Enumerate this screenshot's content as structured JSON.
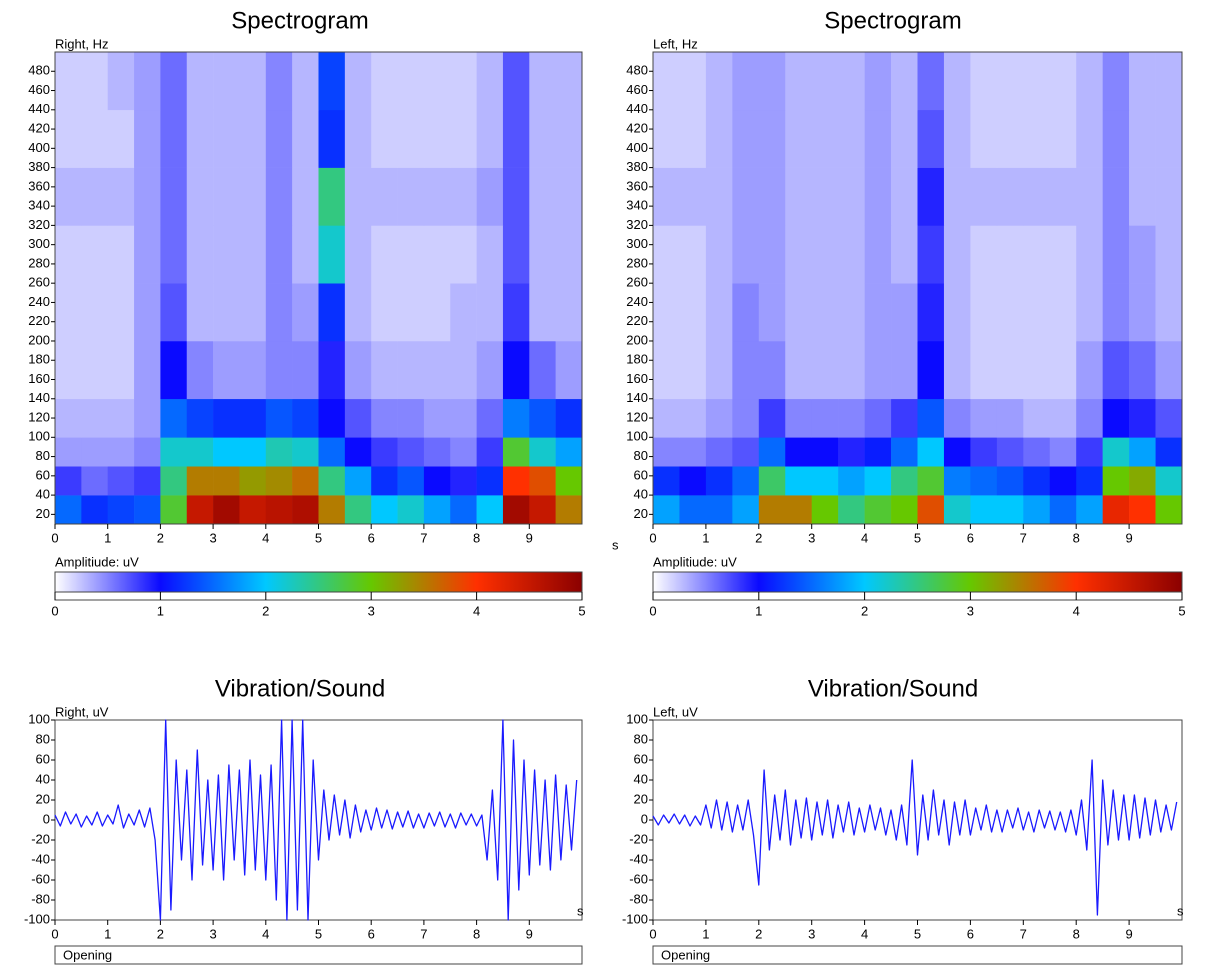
{
  "chart_data": [
    {
      "type": "heatmap",
      "title": "Spectrogram",
      "y_label": "Right, Hz",
      "x_unit": "s",
      "xlim": [
        0,
        10
      ],
      "xticks": [
        0,
        1,
        2,
        3,
        4,
        5,
        6,
        7,
        8,
        9
      ],
      "ylim": [
        10,
        500
      ],
      "yticks": [
        20,
        40,
        60,
        80,
        100,
        120,
        140,
        160,
        180,
        200,
        220,
        240,
        260,
        280,
        300,
        320,
        340,
        360,
        380,
        400,
        420,
        440,
        460,
        480
      ],
      "xbins": [
        0,
        0.5,
        1,
        1.5,
        2,
        2.5,
        3,
        3.5,
        4,
        4.5,
        5,
        5.5,
        6,
        6.5,
        7,
        7.5,
        8,
        8.5,
        9,
        9.5,
        10
      ],
      "ybins": [
        10,
        40,
        70,
        100,
        140,
        200,
        260,
        320,
        380,
        440,
        500
      ],
      "z": [
        [
          1.5,
          1.2,
          1.3,
          1.4,
          2.8,
          4.5,
          4.8,
          4.5,
          4.6,
          4.7,
          3.5,
          2.5,
          2.0,
          2.2,
          1.8,
          1.5,
          2.0,
          4.8,
          4.5,
          3.5
        ],
        [
          0.8,
          0.6,
          0.7,
          0.8,
          2.5,
          3.5,
          3.5,
          3.3,
          3.4,
          3.6,
          2.5,
          1.8,
          1.2,
          1.4,
          1.0,
          0.9,
          1.2,
          4.0,
          3.8,
          3.0
        ],
        [
          0.4,
          0.4,
          0.4,
          0.5,
          2.2,
          2.2,
          2.0,
          2.0,
          2.3,
          2.2,
          1.5,
          1.0,
          0.8,
          0.7,
          0.6,
          0.5,
          0.8,
          2.8,
          2.2,
          1.8
        ],
        [
          0.3,
          0.3,
          0.3,
          0.4,
          1.5,
          1.3,
          1.2,
          1.2,
          1.4,
          1.3,
          1.0,
          0.7,
          0.5,
          0.5,
          0.4,
          0.4,
          0.6,
          1.6,
          1.4,
          1.2
        ],
        [
          0.2,
          0.2,
          0.2,
          0.4,
          1.0,
          0.5,
          0.4,
          0.4,
          0.5,
          0.5,
          0.9,
          0.4,
          0.3,
          0.3,
          0.3,
          0.3,
          0.4,
          1.0,
          0.6,
          0.4
        ],
        [
          0.2,
          0.2,
          0.2,
          0.4,
          0.7,
          0.3,
          0.3,
          0.3,
          0.5,
          0.4,
          1.2,
          0.3,
          0.2,
          0.2,
          0.2,
          0.3,
          0.3,
          0.8,
          0.3,
          0.3
        ],
        [
          0.2,
          0.2,
          0.2,
          0.4,
          0.6,
          0.3,
          0.3,
          0.3,
          0.5,
          0.3,
          2.2,
          0.3,
          0.2,
          0.2,
          0.2,
          0.2,
          0.3,
          0.7,
          0.3,
          0.3
        ],
        [
          0.3,
          0.3,
          0.3,
          0.4,
          0.6,
          0.3,
          0.3,
          0.3,
          0.5,
          0.3,
          2.5,
          0.3,
          0.3,
          0.3,
          0.3,
          0.3,
          0.4,
          0.7,
          0.3,
          0.3
        ],
        [
          0.2,
          0.2,
          0.2,
          0.4,
          0.6,
          0.3,
          0.3,
          0.3,
          0.5,
          0.3,
          1.2,
          0.3,
          0.2,
          0.2,
          0.2,
          0.2,
          0.3,
          0.7,
          0.3,
          0.3
        ],
        [
          0.2,
          0.2,
          0.3,
          0.4,
          0.6,
          0.3,
          0.3,
          0.3,
          0.5,
          0.3,
          1.3,
          0.3,
          0.2,
          0.2,
          0.2,
          0.2,
          0.3,
          0.7,
          0.3,
          0.3
        ]
      ],
      "colorbar": {
        "label": "Amplitiude: uV",
        "ticks": [
          0,
          1,
          2,
          3,
          4,
          5
        ],
        "colors": [
          "#ffffff",
          "#0a0aff",
          "#00c8ff",
          "#66c800",
          "#ff3000",
          "#8b0000"
        ]
      }
    },
    {
      "type": "heatmap",
      "title": "Spectrogram",
      "y_label": "Left, Hz",
      "x_unit": "s",
      "xlim": [
        0,
        10
      ],
      "xticks": [
        0,
        1,
        2,
        3,
        4,
        5,
        6,
        7,
        8,
        9
      ],
      "ylim": [
        10,
        500
      ],
      "yticks": [
        20,
        40,
        60,
        80,
        100,
        120,
        140,
        160,
        180,
        200,
        220,
        240,
        260,
        280,
        300,
        320,
        340,
        360,
        380,
        400,
        420,
        440,
        460,
        480
      ],
      "xbins": [
        0,
        0.5,
        1,
        1.5,
        2,
        2.5,
        3,
        3.5,
        4,
        4.5,
        5,
        5.5,
        6,
        6.5,
        7,
        7.5,
        8,
        8.5,
        9,
        9.5,
        10
      ],
      "ybins": [
        10,
        40,
        70,
        100,
        140,
        200,
        260,
        320,
        380,
        440,
        500
      ],
      "z": [
        [
          1.8,
          1.5,
          1.5,
          1.8,
          3.5,
          3.5,
          3.0,
          2.5,
          2.8,
          3.0,
          3.8,
          2.2,
          2.0,
          2.0,
          1.8,
          1.5,
          1.8,
          4.2,
          4.0,
          3.0
        ],
        [
          1.2,
          1.0,
          1.2,
          1.5,
          2.6,
          2.0,
          2.0,
          1.8,
          2.0,
          2.5,
          2.8,
          1.6,
          1.5,
          1.4,
          1.2,
          1.0,
          1.2,
          3.0,
          3.2,
          2.2
        ],
        [
          0.5,
          0.5,
          0.6,
          0.7,
          1.5,
          1.0,
          1.0,
          0.9,
          1.1,
          1.5,
          2.0,
          1.0,
          0.8,
          0.7,
          0.6,
          0.5,
          0.8,
          2.2,
          1.8,
          1.2
        ],
        [
          0.3,
          0.3,
          0.4,
          0.5,
          0.8,
          0.5,
          0.5,
          0.5,
          0.6,
          0.8,
          1.4,
          0.5,
          0.4,
          0.4,
          0.3,
          0.3,
          0.5,
          1.0,
          0.9,
          0.7
        ],
        [
          0.2,
          0.2,
          0.3,
          0.5,
          0.5,
          0.3,
          0.3,
          0.3,
          0.4,
          0.4,
          1.0,
          0.3,
          0.2,
          0.2,
          0.2,
          0.2,
          0.4,
          0.7,
          0.6,
          0.4
        ],
        [
          0.2,
          0.2,
          0.3,
          0.5,
          0.4,
          0.3,
          0.3,
          0.3,
          0.4,
          0.4,
          0.9,
          0.3,
          0.2,
          0.2,
          0.2,
          0.2,
          0.3,
          0.5,
          0.4,
          0.3
        ],
        [
          0.2,
          0.2,
          0.3,
          0.4,
          0.4,
          0.3,
          0.3,
          0.3,
          0.4,
          0.3,
          0.8,
          0.3,
          0.2,
          0.2,
          0.2,
          0.2,
          0.3,
          0.5,
          0.4,
          0.3
        ],
        [
          0.3,
          0.3,
          0.3,
          0.4,
          0.4,
          0.3,
          0.3,
          0.3,
          0.4,
          0.3,
          0.9,
          0.3,
          0.3,
          0.3,
          0.3,
          0.3,
          0.3,
          0.5,
          0.3,
          0.3
        ],
        [
          0.2,
          0.2,
          0.3,
          0.4,
          0.4,
          0.3,
          0.3,
          0.3,
          0.4,
          0.3,
          0.7,
          0.3,
          0.2,
          0.2,
          0.2,
          0.2,
          0.3,
          0.5,
          0.3,
          0.3
        ],
        [
          0.2,
          0.2,
          0.3,
          0.4,
          0.4,
          0.3,
          0.3,
          0.3,
          0.4,
          0.3,
          0.6,
          0.3,
          0.2,
          0.2,
          0.2,
          0.2,
          0.3,
          0.5,
          0.3,
          0.3
        ]
      ],
      "colorbar": {
        "label": "Amplitiude: uV",
        "ticks": [
          0,
          1,
          2,
          3,
          4,
          5
        ],
        "colors": [
          "#ffffff",
          "#0a0aff",
          "#00c8ff",
          "#66c800",
          "#ff3000",
          "#8b0000"
        ]
      }
    },
    {
      "type": "line",
      "title": "Vibration/Sound",
      "y_label": "Right, uV",
      "x_unit": "s",
      "footer": "Opening",
      "color": "#1a1aff",
      "xlim": [
        0,
        10
      ],
      "xticks": [
        0,
        1,
        2,
        3,
        4,
        5,
        6,
        7,
        8,
        9
      ],
      "ylim": [
        -100,
        100
      ],
      "yticks": [
        100,
        80,
        60,
        40,
        20,
        0,
        -20,
        -40,
        -60,
        -80,
        -100
      ],
      "x": [
        0,
        0.1,
        0.2,
        0.3,
        0.4,
        0.5,
        0.6,
        0.7,
        0.8,
        0.9,
        1,
        1.1,
        1.2,
        1.3,
        1.4,
        1.5,
        1.6,
        1.7,
        1.8,
        1.9,
        2,
        2.1,
        2.2,
        2.3,
        2.4,
        2.5,
        2.6,
        2.7,
        2.8,
        2.9,
        3,
        3.1,
        3.2,
        3.3,
        3.4,
        3.5,
        3.6,
        3.7,
        3.8,
        3.9,
        4,
        4.1,
        4.2,
        4.3,
        4.4,
        4.5,
        4.6,
        4.7,
        4.8,
        4.9,
        5,
        5.1,
        5.2,
        5.3,
        5.4,
        5.5,
        5.6,
        5.7,
        5.8,
        5.9,
        6,
        6.1,
        6.2,
        6.3,
        6.4,
        6.5,
        6.6,
        6.7,
        6.8,
        6.9,
        7,
        7.1,
        7.2,
        7.3,
        7.4,
        7.5,
        7.6,
        7.7,
        7.8,
        7.9,
        8,
        8.1,
        8.2,
        8.3,
        8.4,
        8.5,
        8.6,
        8.7,
        8.8,
        8.9,
        9,
        9.1,
        9.2,
        9.3,
        9.4,
        9.5,
        9.6,
        9.7,
        9.8,
        9.9
      ],
      "values": [
        5,
        -6,
        8,
        -4,
        6,
        -7,
        4,
        -5,
        8,
        -6,
        5,
        -4,
        15,
        -8,
        6,
        -5,
        10,
        -7,
        12,
        -20,
        -100,
        100,
        -90,
        60,
        -40,
        50,
        -60,
        70,
        -45,
        40,
        -50,
        45,
        -60,
        55,
        -40,
        50,
        -55,
        60,
        -50,
        45,
        -60,
        55,
        -80,
        100,
        -100,
        100,
        -90,
        100,
        -100,
        60,
        -40,
        30,
        -20,
        25,
        -15,
        20,
        -18,
        15,
        -12,
        10,
        -10,
        12,
        -8,
        10,
        -9,
        8,
        -7,
        9,
        -8,
        6,
        -8,
        7,
        -6,
        8,
        -7,
        6,
        -8,
        7,
        -5,
        6,
        -6,
        5,
        -40,
        30,
        -60,
        100,
        -100,
        80,
        -70,
        60,
        -55,
        50,
        -45,
        40,
        -50,
        45,
        -40,
        35,
        -30,
        40
      ]
    },
    {
      "type": "line",
      "title": "Vibration/Sound",
      "y_label": "Left, uV",
      "x_unit": "s",
      "footer": "Opening",
      "color": "#1a1aff",
      "xlim": [
        0,
        10
      ],
      "xticks": [
        0,
        1,
        2,
        3,
        4,
        5,
        6,
        7,
        8,
        9
      ],
      "ylim": [
        -100,
        100
      ],
      "yticks": [
        100,
        80,
        60,
        40,
        20,
        0,
        -20,
        -40,
        -60,
        -80,
        -100
      ],
      "x": [
        0,
        0.1,
        0.2,
        0.3,
        0.4,
        0.5,
        0.6,
        0.7,
        0.8,
        0.9,
        1,
        1.1,
        1.2,
        1.3,
        1.4,
        1.5,
        1.6,
        1.7,
        1.8,
        1.9,
        2,
        2.1,
        2.2,
        2.3,
        2.4,
        2.5,
        2.6,
        2.7,
        2.8,
        2.9,
        3,
        3.1,
        3.2,
        3.3,
        3.4,
        3.5,
        3.6,
        3.7,
        3.8,
        3.9,
        4,
        4.1,
        4.2,
        4.3,
        4.4,
        4.5,
        4.6,
        4.7,
        4.8,
        4.9,
        5,
        5.1,
        5.2,
        5.3,
        5.4,
        5.5,
        5.6,
        5.7,
        5.8,
        5.9,
        6,
        6.1,
        6.2,
        6.3,
        6.4,
        6.5,
        6.6,
        6.7,
        6.8,
        6.9,
        7,
        7.1,
        7.2,
        7.3,
        7.4,
        7.5,
        7.6,
        7.7,
        7.8,
        7.9,
        8,
        8.1,
        8.2,
        8.3,
        8.4,
        8.5,
        8.6,
        8.7,
        8.8,
        8.9,
        9,
        9.1,
        9.2,
        9.3,
        9.4,
        9.5,
        9.6,
        9.7,
        9.8,
        9.9
      ],
      "values": [
        4,
        -5,
        5,
        -3,
        6,
        -4,
        5,
        -6,
        4,
        -5,
        15,
        -8,
        20,
        -10,
        18,
        -12,
        15,
        -10,
        20,
        -15,
        -65,
        50,
        -30,
        25,
        -20,
        30,
        -25,
        20,
        -18,
        22,
        -20,
        18,
        -15,
        20,
        -18,
        15,
        -12,
        18,
        -15,
        12,
        -12,
        15,
        -10,
        12,
        -15,
        10,
        -20,
        15,
        -25,
        60,
        -35,
        25,
        -20,
        30,
        -15,
        20,
        -25,
        18,
        -15,
        20,
        -15,
        12,
        -10,
        15,
        -12,
        10,
        -12,
        10,
        -8,
        12,
        -10,
        8,
        -12,
        10,
        -8,
        9,
        -10,
        8,
        -12,
        10,
        -15,
        20,
        -30,
        60,
        -95,
        40,
        -25,
        30,
        -20,
        25,
        -20,
        25,
        -18,
        22,
        -15,
        20,
        -12,
        15,
        -10,
        18
      ]
    }
  ]
}
